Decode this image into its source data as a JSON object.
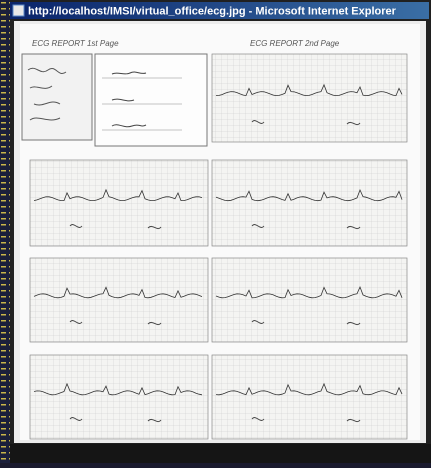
{
  "window": {
    "title": "http://localhost/IMSI/virtual_office/ecg.jpg - Microsoft Internet Explorer"
  },
  "image": {
    "left_header": "ECG REPORT 1st Page",
    "right_header": "ECG REPORT 2nd Page"
  }
}
